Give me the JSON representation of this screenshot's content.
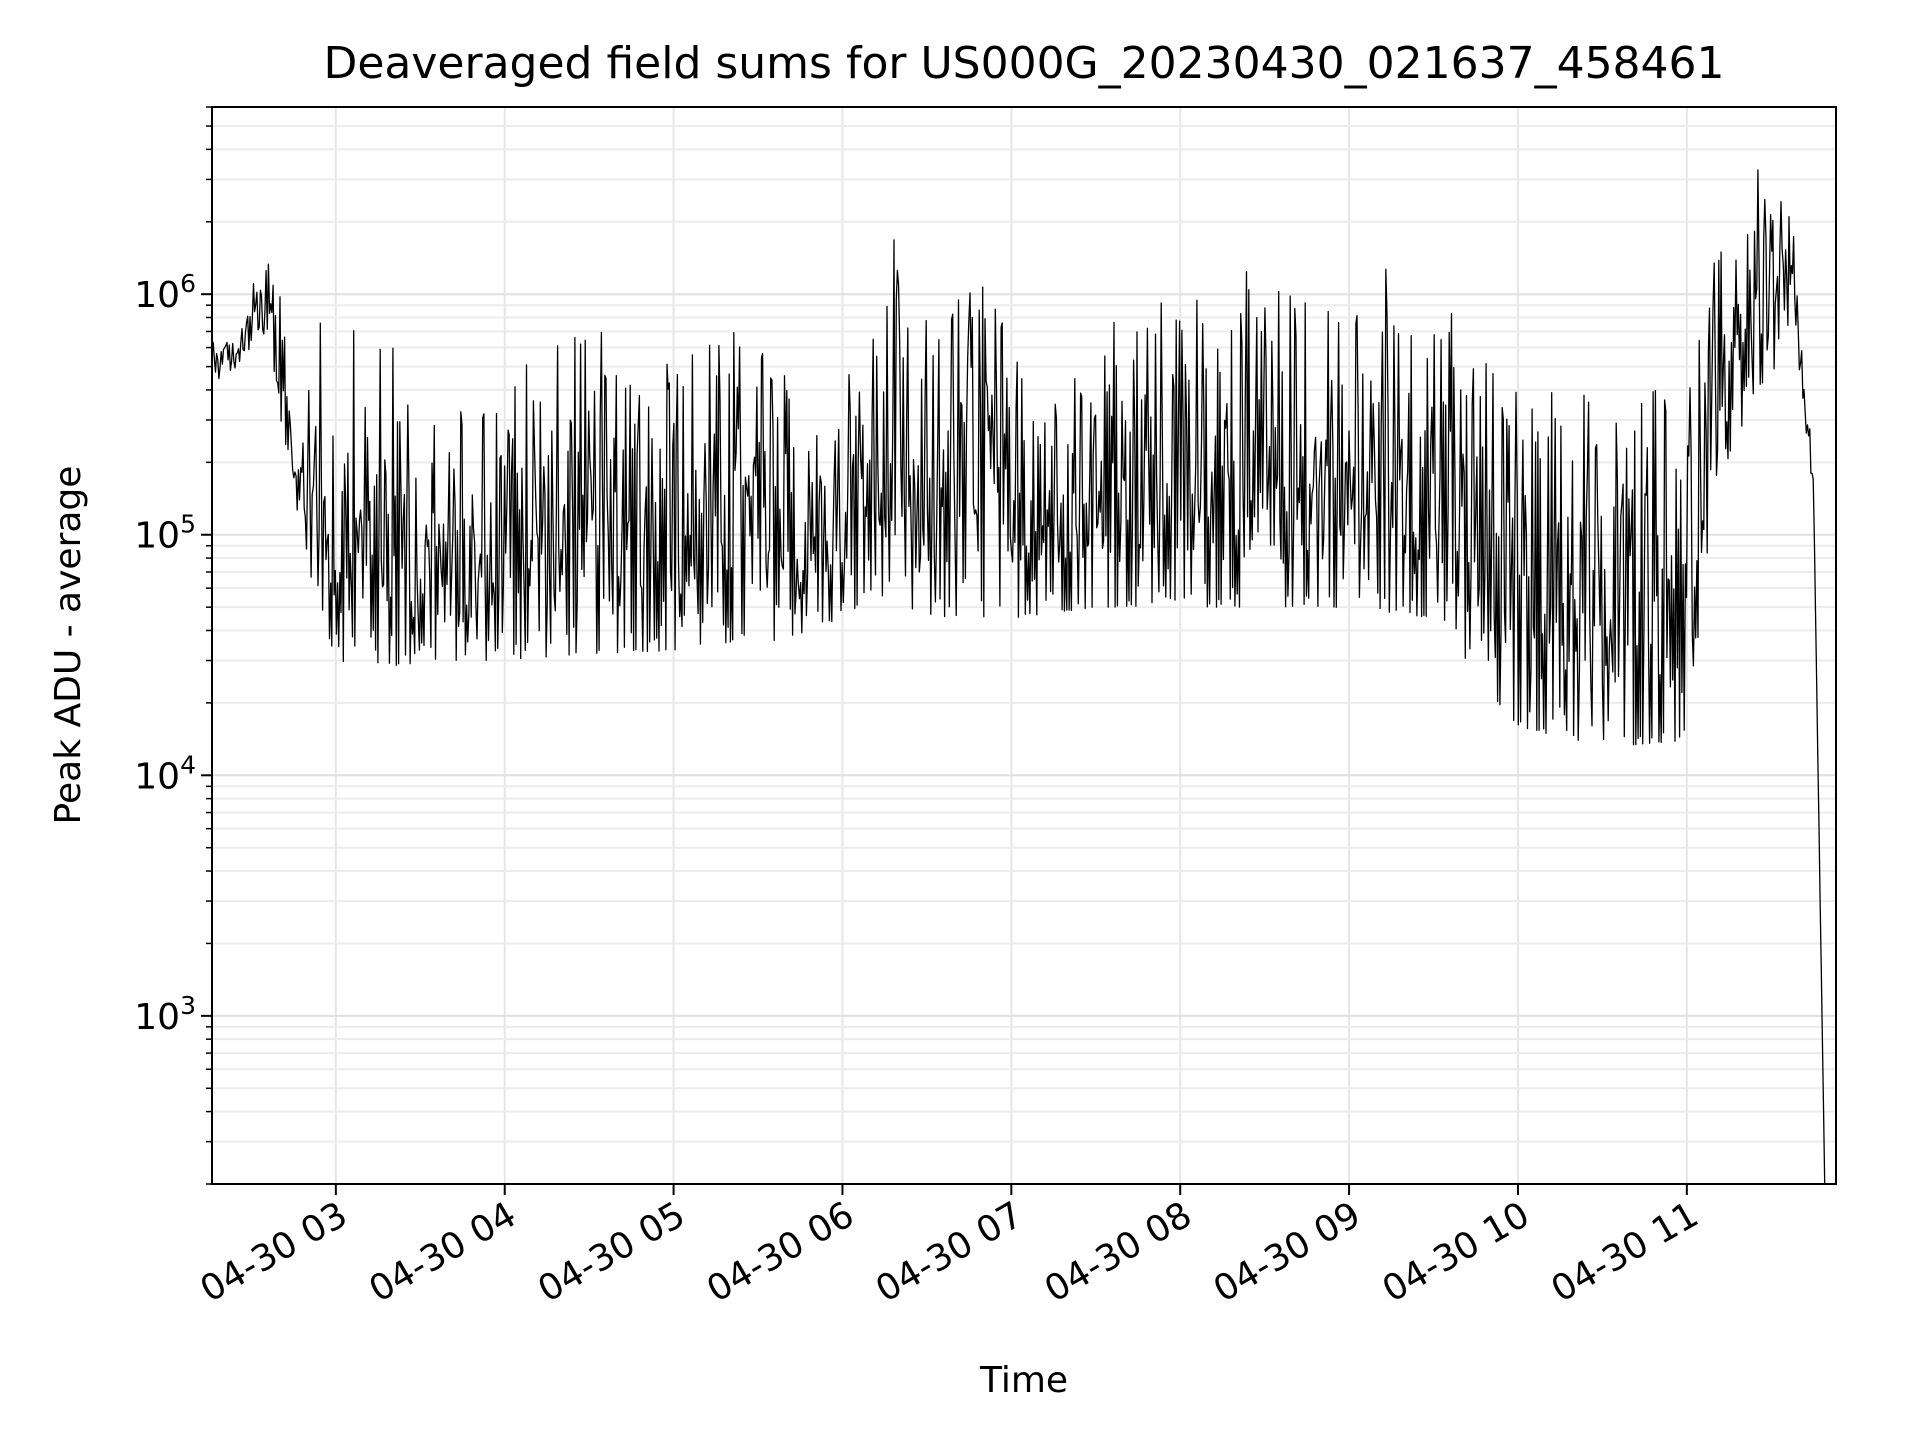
{
  "chart_data": {
    "type": "line",
    "title": "Deaveraged field sums for US000G_20230430_021637_458461",
    "xlabel": "Time",
    "ylabel": "Peak ADU - average",
    "y_scale": "log",
    "ylim": [
      200,
      6000000
    ],
    "xlim": [
      "2023-04-30 02:16",
      "2023-04-30 11:53"
    ],
    "grid": true,
    "grid_minor": true,
    "x_tick_labels": [
      {
        "t": "2023-04-30 03:00",
        "label": "04-30 03"
      },
      {
        "t": "2023-04-30 04:00",
        "label": "04-30 04"
      },
      {
        "t": "2023-04-30 05:00",
        "label": "04-30 05"
      },
      {
        "t": "2023-04-30 06:00",
        "label": "04-30 06"
      },
      {
        "t": "2023-04-30 07:00",
        "label": "04-30 07"
      },
      {
        "t": "2023-04-30 08:00",
        "label": "04-30 08"
      },
      {
        "t": "2023-04-30 09:00",
        "label": "04-30 09"
      },
      {
        "t": "2023-04-30 10:00",
        "label": "04-30 10"
      },
      {
        "t": "2023-04-30 11:00",
        "label": "04-30 11"
      }
    ],
    "y_tick_labels": [
      {
        "v": 1000,
        "base": "10",
        "exp": "3"
      },
      {
        "v": 10000,
        "base": "10",
        "exp": "4"
      },
      {
        "v": 100000,
        "base": "10",
        "exp": "5"
      },
      {
        "v": 1000000,
        "base": "10",
        "exp": "6"
      }
    ],
    "series": [
      {
        "color": "#000000",
        "envelope": [
          {
            "t": "2023-04-30 02:16",
            "low": 420000,
            "high": 850000
          },
          {
            "t": "2023-04-30 02:25",
            "low": 500000,
            "high": 650000
          },
          {
            "t": "2023-04-30 02:32",
            "low": 650000,
            "high": 1300000
          },
          {
            "t": "2023-04-30 02:38",
            "low": 400000,
            "high": 2000000
          },
          {
            "t": "2023-04-30 02:45",
            "low": 150000,
            "high": 280000
          },
          {
            "t": "2023-04-30 02:52",
            "low": 60000,
            "high": 750000
          },
          {
            "t": "2023-04-30 03:00",
            "low": 30000,
            "high": 850000
          },
          {
            "t": "2023-04-30 03:20",
            "low": 28000,
            "high": 700000
          },
          {
            "t": "2023-04-30 03:40",
            "low": 30000,
            "high": 300000
          },
          {
            "t": "2023-04-30 04:00",
            "low": 30000,
            "high": 780000
          },
          {
            "t": "2023-04-30 04:30",
            "low": 32000,
            "high": 720000
          },
          {
            "t": "2023-04-30 05:00",
            "low": 33000,
            "high": 780000
          },
          {
            "t": "2023-04-30 05:30",
            "low": 35000,
            "high": 800000
          },
          {
            "t": "2023-04-30 05:50",
            "low": 40000,
            "high": 300000
          },
          {
            "t": "2023-04-30 06:10",
            "low": 50000,
            "high": 850000
          },
          {
            "t": "2023-04-30 06:17",
            "low": 60000,
            "high": 2200000
          },
          {
            "t": "2023-04-30 06:25",
            "low": 45000,
            "high": 700000
          },
          {
            "t": "2023-04-30 06:50",
            "low": 45000,
            "high": 2300000
          },
          {
            "t": "2023-04-30 07:00",
            "low": 45000,
            "high": 600000
          },
          {
            "t": "2023-04-30 07:30",
            "low": 50000,
            "high": 700000
          },
          {
            "t": "2023-04-30 08:00",
            "low": 50000,
            "high": 1200000
          },
          {
            "t": "2023-04-30 08:30",
            "low": 50000,
            "high": 1300000
          },
          {
            "t": "2023-04-30 09:00",
            "low": 50000,
            "high": 1400000
          },
          {
            "t": "2023-04-30 09:30",
            "low": 45000,
            "high": 1300000
          },
          {
            "t": "2023-04-30 09:50",
            "low": 20000,
            "high": 650000
          },
          {
            "t": "2023-04-30 10:00",
            "low": 16000,
            "high": 500000
          },
          {
            "t": "2023-04-30 10:30",
            "low": 13000,
            "high": 400000
          },
          {
            "t": "2023-04-30 11:00",
            "low": 14000,
            "high": 600000
          },
          {
            "t": "2023-04-30 11:10",
            "low": 150000,
            "high": 1500000
          },
          {
            "t": "2023-04-30 11:25",
            "low": 400000,
            "high": 3500000
          },
          {
            "t": "2023-04-30 11:38",
            "low": 600000,
            "high": 2000000
          },
          {
            "t": "2023-04-30 11:45",
            "low": 150000,
            "high": 180000
          },
          {
            "t": "2023-04-30 11:49",
            "low": 200,
            "high": 200
          }
        ]
      }
    ]
  }
}
